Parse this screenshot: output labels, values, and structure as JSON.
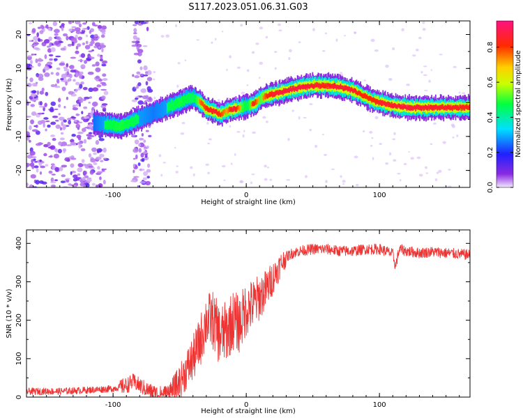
{
  "title": "S117.2023.051.06.31.G03",
  "chart_data": [
    {
      "type": "heatmap",
      "xlabel": "Height of straight line (km)",
      "ylabel": "Frequency (Hz)",
      "xlim": [
        -165,
        168
      ],
      "ylim": [
        -25,
        24
      ],
      "xticks": [
        -100,
        0,
        100
      ],
      "yticks": [
        -20,
        -10,
        0,
        10,
        20
      ],
      "colorbar": {
        "label": "Normalized spectral amplitude",
        "range": [
          0,
          0.95
        ],
        "ticks": [
          0.0,
          0.2,
          0.4,
          0.6,
          0.8
        ],
        "tick_labels": [
          "0.0",
          "0.2",
          "0.4",
          "0.6",
          "0.8"
        ]
      },
      "ridge_trace": {
        "x": [
          -115,
          -105,
          -95,
          -85,
          -70,
          -60,
          -50,
          -45,
          -40,
          -35,
          -30,
          -25,
          -20,
          -15,
          -10,
          -5,
          0,
          5,
          10,
          15,
          20,
          30,
          40,
          50,
          60,
          70,
          80,
          85,
          90,
          95,
          100,
          110,
          120,
          140,
          168
        ],
        "frequency": [
          -6,
          -6.5,
          -7,
          -5.5,
          -3,
          -1.5,
          0,
          1,
          1.5,
          0,
          -2,
          -2.5,
          -3.5,
          -2.5,
          -2,
          -1.5,
          -1,
          -0.5,
          1,
          2,
          2.5,
          3.5,
          4.5,
          5,
          5,
          4.5,
          3.5,
          2.5,
          1.5,
          0.5,
          0,
          -1,
          -1.5,
          -1.5,
          -1.5
        ],
        "amplitude": [
          0.3,
          0.55,
          0.6,
          0.55,
          0.35,
          0.5,
          0.6,
          0.55,
          0.5,
          0.8,
          0.85,
          0.9,
          0.85,
          0.75,
          0.95,
          0.75,
          0.5,
          0.9,
          0.7,
          0.85,
          0.9,
          0.92,
          0.93,
          0.9,
          0.88,
          0.92,
          0.9,
          0.85,
          0.85,
          0.85,
          0.9,
          0.9,
          0.92,
          0.9,
          0.88
        ]
      },
      "noise_bands": [
        {
          "x_range": [
            -165,
            -105
          ],
          "amplitude": 0.15
        },
        {
          "x_range": [
            -85,
            -72
          ],
          "amplitude": 0.15
        }
      ]
    },
    {
      "type": "line",
      "xlabel": "Height of straight line (km)",
      "ylabel": "SNR (10 * v/v)",
      "xlim": [
        -165,
        168
      ],
      "ylim": [
        0,
        435
      ],
      "xticks": [
        -100,
        0,
        100
      ],
      "yticks": [
        0,
        100,
        200,
        300,
        400
      ],
      "color": "#ee3333",
      "series": [
        {
          "x": [
            -165,
            -140,
            -120,
            -100,
            -90,
            -85,
            -80,
            -75,
            -70,
            -65,
            -60,
            -55,
            -50,
            -45,
            -40,
            -35,
            -30,
            -25,
            -20,
            -15,
            -10,
            -5,
            0,
            5,
            10,
            15,
            20,
            25,
            30,
            35,
            40,
            50,
            60,
            70,
            80,
            90,
            100,
            105,
            110,
            112,
            115,
            120,
            130,
            140,
            150,
            160,
            168
          ],
          "y": [
            15,
            15,
            18,
            22,
            30,
            40,
            30,
            20,
            12,
            8,
            10,
            18,
            40,
            70,
            100,
            140,
            200,
            200,
            160,
            170,
            200,
            190,
            230,
            240,
            260,
            280,
            310,
            340,
            365,
            375,
            380,
            385,
            385,
            380,
            380,
            385,
            385,
            380,
            372,
            340,
            385,
            380,
            375,
            378,
            375,
            372,
            370
          ]
        }
      ]
    }
  ]
}
